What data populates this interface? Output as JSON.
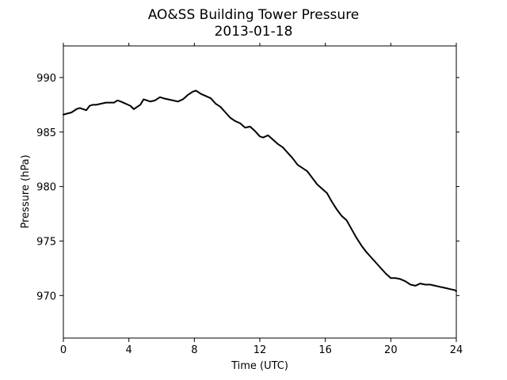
{
  "chart_data": {
    "type": "line",
    "title": "AO&SS Building Tower Pressure",
    "subtitle": "2013-01-18",
    "xlabel": "Time (UTC)",
    "ylabel": "Pressure (hPa)",
    "xlim": [
      0,
      24
    ],
    "ylim": [
      966.1,
      992.9
    ],
    "x_ticks": [
      0,
      4,
      8,
      12,
      16,
      20,
      24
    ],
    "x_tick_labels": [
      "0",
      "4",
      "8",
      "12",
      "16",
      "20",
      "24"
    ],
    "y_ticks": [
      970,
      975,
      980,
      985,
      990
    ],
    "y_tick_labels": [
      "970",
      "975",
      "980",
      "985",
      "990"
    ],
    "grid": false,
    "legend": "none",
    "series": [
      {
        "color": "#000000",
        "x": [
          0,
          0.5,
          0.8,
          1.0,
          1.2,
          1.4,
          1.6,
          1.8,
          2.0,
          2.3,
          2.6,
          2.9,
          3.1,
          3.3,
          3.5,
          3.8,
          4.1,
          4.3,
          4.5,
          4.7,
          4.9,
          5.1,
          5.3,
          5.6,
          5.9,
          6.1,
          6.4,
          6.7,
          7.0,
          7.3,
          7.6,
          7.9,
          8.1,
          8.4,
          8.7,
          9.0,
          9.3,
          9.6,
          9.9,
          10.2,
          10.5,
          10.8,
          11.1,
          11.4,
          11.7,
          12.0,
          12.2,
          12.5,
          12.8,
          13.1,
          13.4,
          13.7,
          14.0,
          14.3,
          14.6,
          14.9,
          15.2,
          15.5,
          15.8,
          16.1,
          16.4,
          16.7,
          17.0,
          17.3,
          17.6,
          17.9,
          18.2,
          18.5,
          18.8,
          19.1,
          19.4,
          19.7,
          20.0,
          20.3,
          20.6,
          20.9,
          21.2,
          21.5,
          21.8,
          22.1,
          22.4,
          22.7,
          23.0,
          23.3,
          23.6,
          23.9,
          24.0
        ],
        "y": [
          986.6,
          986.8,
          987.1,
          987.2,
          987.1,
          987.0,
          987.4,
          987.5,
          987.5,
          987.6,
          987.7,
          987.7,
          987.7,
          987.9,
          987.8,
          987.6,
          987.4,
          987.1,
          987.3,
          987.5,
          988.0,
          987.9,
          987.8,
          987.9,
          988.2,
          988.1,
          988.0,
          987.9,
          987.8,
          988.0,
          988.4,
          988.7,
          988.8,
          988.5,
          988.3,
          988.1,
          987.6,
          987.3,
          986.8,
          986.3,
          986.0,
          985.8,
          985.4,
          985.5,
          985.1,
          984.6,
          984.5,
          984.7,
          984.3,
          983.9,
          983.6,
          983.1,
          982.6,
          982.0,
          981.7,
          981.4,
          980.8,
          980.2,
          979.8,
          979.4,
          978.6,
          977.9,
          977.3,
          976.9,
          976.1,
          975.3,
          974.6,
          974.0,
          973.5,
          973.0,
          972.5,
          972.0,
          971.6,
          971.6,
          971.5,
          971.3,
          971.0,
          970.9,
          971.1,
          971.0,
          971.0,
          970.9,
          970.8,
          970.7,
          970.6,
          970.5,
          970.4
        ]
      }
    ]
  }
}
